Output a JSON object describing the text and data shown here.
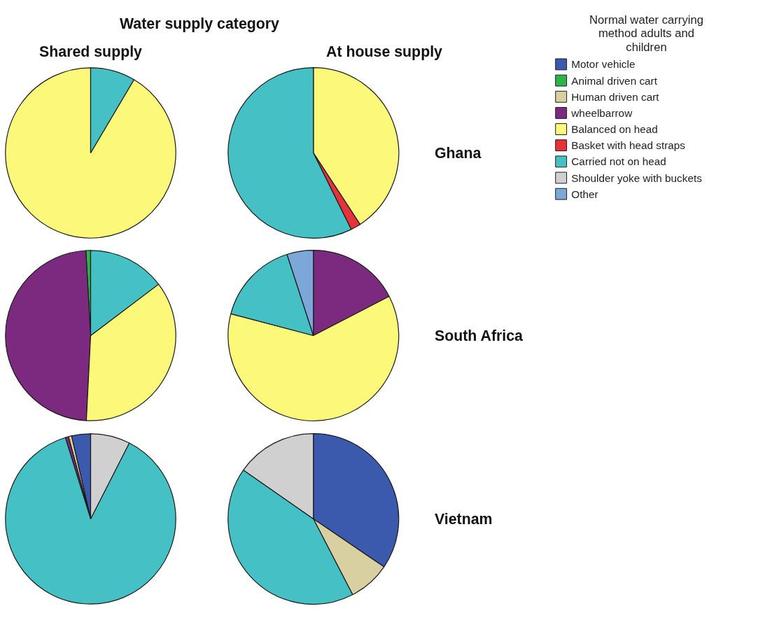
{
  "chart_data": [
    {
      "type": "pie",
      "title": "Shared supply",
      "annotations": [
        "Water supply category"
      ],
      "legend": "right",
      "legend_title": "Normal water carrying method adults and children",
      "categories": [
        "Motor vehicle",
        "Animal driven cart",
        "Human driven cart",
        "wheelbarrow",
        "Balanced on head",
        "Basket with head straps",
        "Carried not on head",
        "Shoulder yoke with buckets",
        "Other"
      ],
      "values": [
        0,
        0,
        0,
        0,
        91.5,
        0,
        8.5,
        0,
        0
      ],
      "colors": [
        "#3c5aad",
        "#2db34a",
        "#d8d0a0",
        "#7b2a7f",
        "#fbf87a",
        "#e8323a",
        "#45c1c6",
        "#d0d0d0",
        "#7ba8d8"
      ]
    },
    {
      "type": "pie",
      "title": "At house supply",
      "annotations": [
        "Ghana"
      ],
      "categories": [
        null,
        null,
        null,
        null,
        null,
        null,
        null,
        null,
        null
      ],
      "values": [
        0,
        0,
        0,
        0,
        40.8,
        1.9,
        57.3,
        0,
        0
      ],
      "colors": [
        "#3c5aad",
        "#2db34a",
        "#d8d0a0",
        "#7b2a7f",
        "#fbf87a",
        "#e8323a",
        "#45c1c6",
        "#d0d0d0",
        "#7ba8d8"
      ]
    },
    {
      "type": "pie",
      "categories": [
        null,
        null,
        null,
        null,
        null,
        null,
        null,
        null,
        null
      ],
      "values": [
        0,
        0.9,
        0,
        48.3,
        36.1,
        0,
        14.7,
        0,
        0
      ],
      "colors": [
        "#3c5aad",
        "#2db34a",
        "#d8d0a0",
        "#7b2a7f",
        "#fbf87a",
        "#e8323a",
        "#45c1c6",
        "#d0d0d0",
        "#7ba8d8"
      ]
    },
    {
      "type": "pie",
      "annotations": [
        "South Africa"
      ],
      "categories": [
        null,
        null,
        null,
        null,
        null,
        null,
        null,
        null,
        null
      ],
      "values": [
        0,
        0,
        0,
        17.4,
        61.7,
        0,
        15.9,
        0,
        5.0
      ],
      "colors": [
        "#3c5aad",
        "#2db34a",
        "#d8d0a0",
        "#7b2a7f",
        "#fbf87a",
        "#e8323a",
        "#45c1c6",
        "#d0d0d0",
        "#7ba8d8"
      ]
    },
    {
      "type": "pie",
      "categories": [
        null,
        null,
        null,
        null,
        null,
        null,
        null,
        null,
        null
      ],
      "values": [
        3.6,
        0,
        0.6,
        0.6,
        0,
        0,
        87.7,
        7.5,
        0
      ],
      "colors": [
        "#3c5aad",
        "#2db34a",
        "#d8d0a0",
        "#7b2a7f",
        "#fbf87a",
        "#e8323a",
        "#45c1c6",
        "#d0d0d0",
        "#7ba8d8"
      ]
    },
    {
      "type": "pie",
      "annotations": [
        "Vietnam"
      ],
      "categories": [
        null,
        null,
        null,
        null,
        null,
        null,
        null,
        null,
        null
      ],
      "values": [
        34.5,
        0,
        7.9,
        0,
        0,
        0,
        42.3,
        15.3,
        0
      ],
      "colors": [
        "#3c5aad",
        "#2db34a",
        "#d8d0a0",
        "#7b2a7f",
        "#fbf87a",
        "#e8323a",
        "#45c1c6",
        "#d0d0d0",
        "#7ba8d8"
      ]
    }
  ]
}
